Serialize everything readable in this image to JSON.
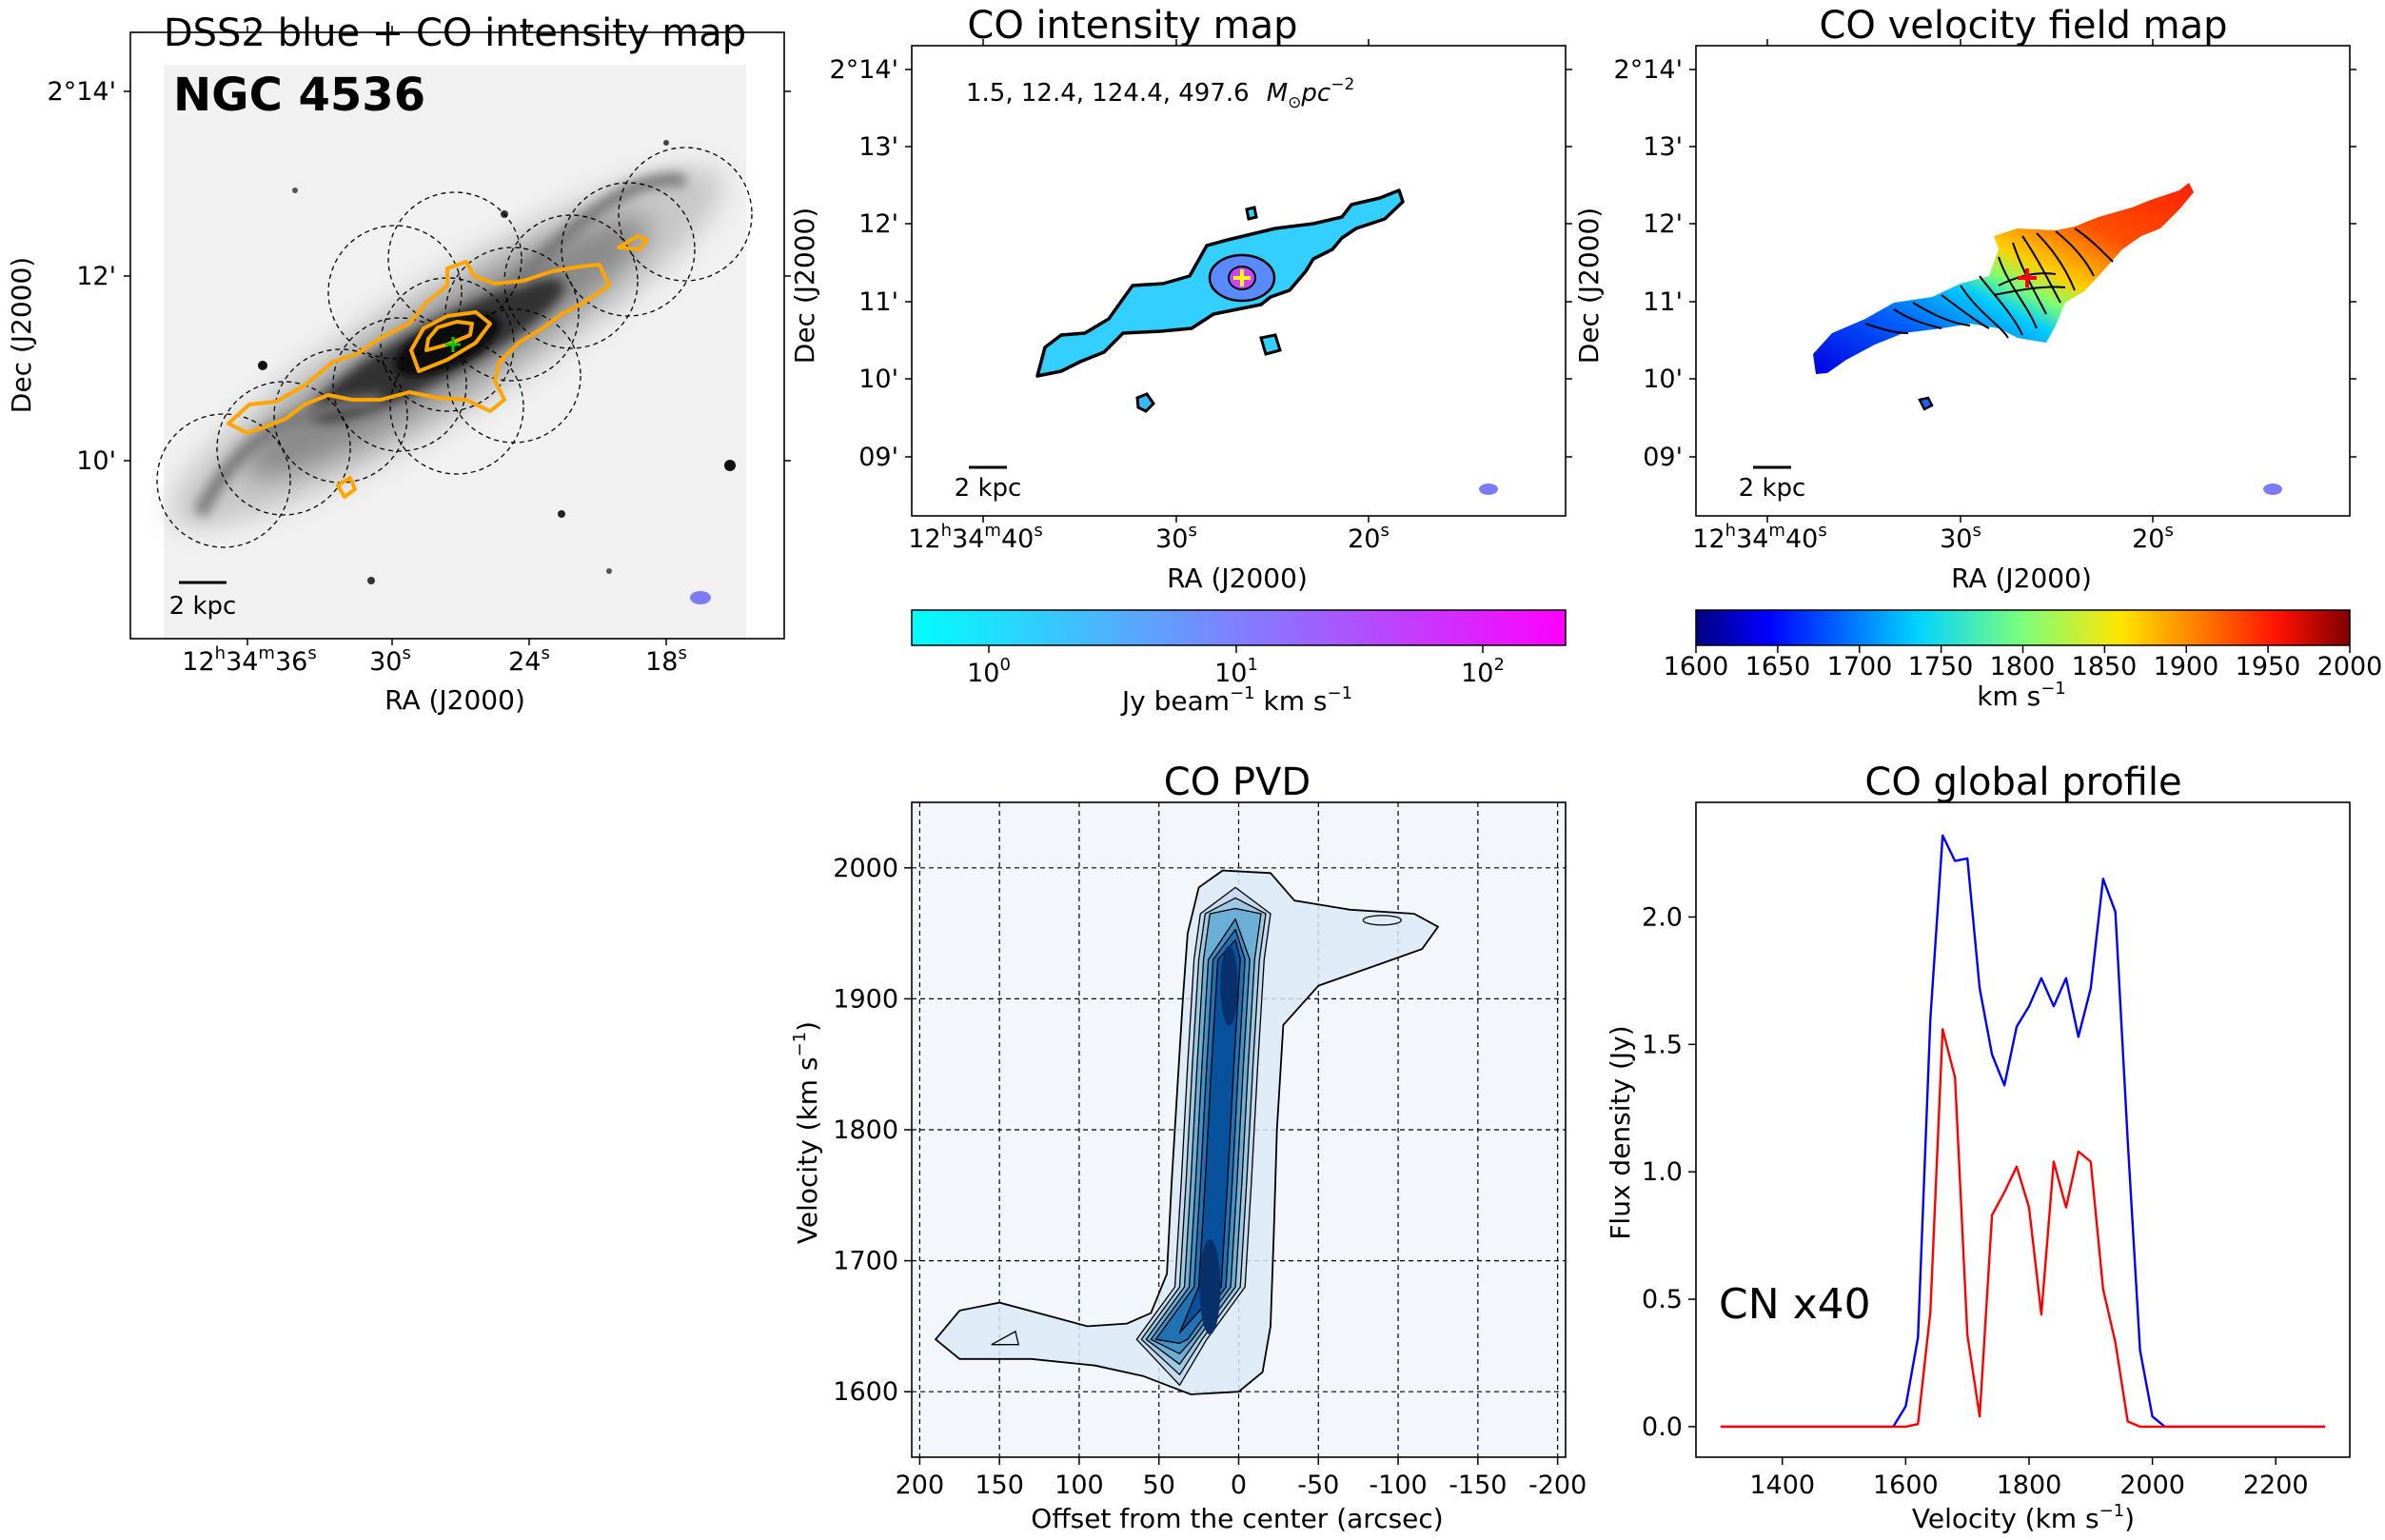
{
  "colors": {
    "co_contour": "#FFA500",
    "blue_line": "#0000FF",
    "red_line": "#FF0000",
    "beam": "#7B7BFF",
    "cross_yellow": "#FFFF00",
    "cross_red": "#FF0000",
    "pvd_fill": "#08306B"
  },
  "panels": {
    "dss": {
      "title": "DSS2 blue + CO intensity map",
      "object_name": "NGC 4536",
      "scalebar": "2 kpc",
      "xlabel": "RA (J2000)",
      "ylabel": "Dec (J2000)",
      "xticks": [
        {
          "h": "12",
          "hs": "h",
          "m": "34",
          "ms": "m",
          "s": "36",
          "ss": "s"
        },
        {
          "s": "30",
          "ss": "s"
        },
        {
          "s": "24",
          "ss": "s"
        },
        {
          "s": "18",
          "ss": "s"
        }
      ],
      "yticks": [
        "2°14'",
        "12'",
        "10'"
      ]
    },
    "intensity": {
      "title": "CO intensity map",
      "contour_levels": "1.5, 12.4, 124.4, 497.6",
      "contour_unit": "M",
      "contour_unit_sub": "⊙",
      "contour_unit_rest": "pc",
      "contour_unit_sup": "−2",
      "scalebar": "2 kpc",
      "xlabel": "RA (J2000)",
      "ylabel": "Dec (J2000)",
      "xticks": [
        {
          "h": "12",
          "hs": "h",
          "m": "34",
          "ms": "m",
          "s": "40",
          "ss": "s"
        },
        {
          "s": "30",
          "ss": "s"
        },
        {
          "s": "20",
          "ss": "s"
        }
      ],
      "yticks": [
        "2°14'",
        "13'",
        "12'",
        "11'",
        "10'",
        "09'"
      ],
      "colorbar": {
        "ticks": [
          {
            "base": "10",
            "exp": "0"
          },
          {
            "base": "10",
            "exp": "1"
          },
          {
            "base": "10",
            "exp": "2"
          }
        ],
        "label_a": "Jy beam",
        "label_a_sup": "−1",
        "label_b": " km s",
        "label_b_sup": "−1",
        "color_start": "#00FFFF",
        "color_end": "#FF00FF"
      }
    },
    "velocity": {
      "title": "CO velocity field map",
      "scalebar": "2 kpc",
      "xlabel": "RA (J2000)",
      "ylabel": "Dec (J2000)",
      "xticks": [
        {
          "h": "12",
          "hs": "h",
          "m": "34",
          "ms": "m",
          "s": "40",
          "ss": "s"
        },
        {
          "s": "30",
          "ss": "s"
        },
        {
          "s": "20",
          "ss": "s"
        }
      ],
      "yticks": [
        "2°14'",
        "13'",
        "12'",
        "11'",
        "10'",
        "09'"
      ],
      "colorbar": {
        "ticks": [
          "1600",
          "1650",
          "1700",
          "1750",
          "1800",
          "1850",
          "1900",
          "1950",
          "2000"
        ],
        "label": "km s",
        "label_sup": "−1"
      }
    }
  },
  "chart_data": [
    {
      "type": "heatmap",
      "title": "CO PVD",
      "xlabel": "Offset from the center (arcsec)",
      "ylabel": "Velocity (km s",
      "ylabel_sup": "−1",
      "ylabel_end": ")",
      "xlim": [
        205,
        -205
      ],
      "ylim": [
        1550,
        2050
      ],
      "xticks": [
        200,
        150,
        100,
        50,
        0,
        -50,
        -100,
        -150,
        -200
      ],
      "yticks": [
        1600,
        1700,
        1800,
        1900,
        2000
      ],
      "grid": true,
      "ridge": [
        {
          "offset": 42,
          "velocity": 1640
        },
        {
          "offset": 18,
          "velocity": 1680
        },
        {
          "offset": 14,
          "velocity": 1760
        },
        {
          "offset": 10,
          "velocity": 1850
        },
        {
          "offset": 6,
          "velocity": 1930
        },
        {
          "offset": 2,
          "velocity": 1965
        }
      ]
    },
    {
      "type": "line",
      "title": "CO global profile",
      "xlabel": "Velocity (km s",
      "xlabel_sup": "−1",
      "xlabel_end": ")",
      "ylabel": "Flux density (Jy)",
      "xlim": [
        1260,
        2320
      ],
      "ylim": [
        -0.12,
        2.45
      ],
      "xticks": [
        1400,
        1600,
        1800,
        2000,
        2200
      ],
      "yticks": [
        0.0,
        0.5,
        1.0,
        1.5,
        2.0
      ],
      "annotation": "CN x40",
      "series": [
        {
          "name": "CO",
          "x": [
            1300,
            1580,
            1600,
            1620,
            1640,
            1660,
            1680,
            1700,
            1720,
            1740,
            1760,
            1780,
            1800,
            1820,
            1840,
            1860,
            1880,
            1900,
            1920,
            1940,
            1960,
            1980,
            2000,
            2020,
            2280
          ],
          "y": [
            0,
            0,
            0.08,
            0.35,
            1.6,
            2.32,
            2.22,
            2.23,
            1.72,
            1.46,
            1.34,
            1.57,
            1.65,
            1.76,
            1.65,
            1.76,
            1.53,
            1.72,
            2.15,
            2.02,
            1.12,
            0.3,
            0.04,
            0,
            0
          ]
        },
        {
          "name": "CN x40",
          "x": [
            1300,
            1600,
            1620,
            1640,
            1660,
            1680,
            1700,
            1720,
            1740,
            1760,
            1780,
            1800,
            1820,
            1840,
            1860,
            1880,
            1900,
            1920,
            1940,
            1960,
            1980,
            2280
          ],
          "y": [
            0,
            0,
            0.01,
            0.45,
            1.56,
            1.37,
            0.36,
            0.04,
            0.83,
            0.92,
            1.02,
            0.86,
            0.44,
            1.04,
            0.86,
            1.08,
            1.04,
            0.54,
            0.33,
            0.02,
            0,
            0
          ]
        }
      ]
    }
  ]
}
